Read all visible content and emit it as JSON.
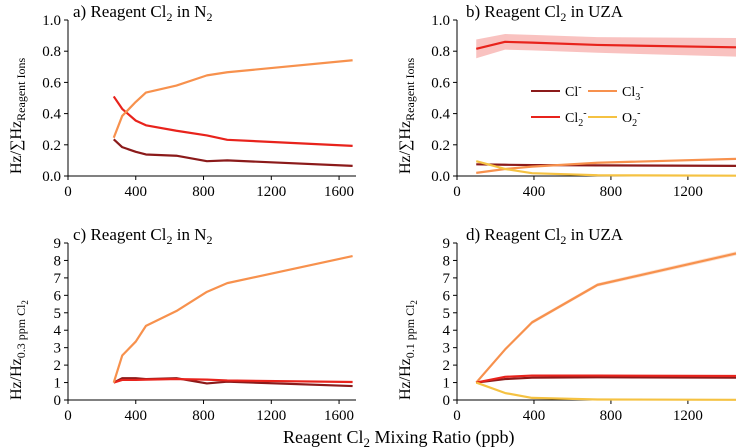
{
  "chart_data": [
    {
      "panel": "a",
      "type": "line",
      "title": "a) Reagent Cl2 in N2",
      "title_parts": {
        "prefix": "a) Reagent Cl",
        "sub1": "2",
        "mid": " in N",
        "sub2": "2"
      },
      "ylabel": {
        "main": "Hz/∑Hz",
        "sub": "Reagent Ions"
      },
      "xlim": [
        0,
        1700
      ],
      "ylim": [
        0,
        1.0
      ],
      "xticks": [
        0,
        400,
        800,
        1200,
        1600
      ],
      "yticks": [
        0.0,
        0.2,
        0.4,
        0.6,
        0.8,
        1.0
      ],
      "ytick_labels": [
        "0.0",
        "0.2",
        "0.4",
        "0.6",
        "0.8",
        "1.0"
      ],
      "series": [
        {
          "name": "Cl-",
          "color": "#8b1a1a",
          "x": [
            270,
            320,
            400,
            460,
            640,
            820,
            940,
            1680
          ],
          "y": [
            0.235,
            0.185,
            0.155,
            0.138,
            0.13,
            0.095,
            0.1,
            0.065
          ]
        },
        {
          "name": "Cl2-",
          "color": "#e8231c",
          "x": [
            270,
            320,
            400,
            460,
            640,
            820,
            940,
            1680
          ],
          "y": [
            0.51,
            0.43,
            0.355,
            0.325,
            0.29,
            0.26,
            0.232,
            0.193
          ]
        },
        {
          "name": "Cl3-",
          "color": "#f7914d",
          "x": [
            270,
            320,
            400,
            460,
            640,
            820,
            940,
            1680
          ],
          "y": [
            0.245,
            0.385,
            0.475,
            0.535,
            0.58,
            0.645,
            0.665,
            0.742
          ]
        }
      ]
    },
    {
      "panel": "b",
      "type": "line",
      "title": "b) Reagent Cl2 in UZA",
      "title_parts": {
        "prefix": "b) Reagent Cl",
        "sub1": "2",
        "mid": " in UZA",
        "sub2": ""
      },
      "ylabel": {
        "main": "Hz/∑Hz",
        "sub": "Reagent Ions"
      },
      "xlim": [
        0,
        1450
      ],
      "ylim": [
        0,
        1.0
      ],
      "xticks": [
        0,
        400,
        800,
        1200
      ],
      "yticks": [
        0.0,
        0.2,
        0.4,
        0.6,
        0.8,
        1.0
      ],
      "ytick_labels": [
        "0.0",
        "0.2",
        "0.4",
        "0.6",
        "0.8",
        "1.0"
      ],
      "legend": [
        {
          "label": "Cl",
          "sup": "-",
          "color": "#8b1a1a"
        },
        {
          "label": "Cl",
          "sub": "3",
          "sup": "-",
          "color": "#f7914d"
        },
        {
          "label": "Cl",
          "sub": "2",
          "sup": "-",
          "color": "#e8231c"
        },
        {
          "label": "O",
          "sub": "2",
          "sup": "-",
          "color": "#f5c242"
        }
      ],
      "series": [
        {
          "name": "Cl2-",
          "color": "#e8231c",
          "x": [
            100,
            250,
            390,
            730,
            1450
          ],
          "y": [
            0.815,
            0.86,
            0.855,
            0.84,
            0.825
          ],
          "band": [
            0.06,
            0.05,
            0.05,
            0.05,
            0.06
          ]
        },
        {
          "name": "Cl-",
          "color": "#8b1a1a",
          "x": [
            100,
            250,
            390,
            730,
            1450
          ],
          "y": [
            0.075,
            0.072,
            0.07,
            0.068,
            0.065
          ]
        },
        {
          "name": "Cl3-",
          "color": "#f7914d",
          "x": [
            100,
            250,
            390,
            730,
            1450
          ],
          "y": [
            0.02,
            0.045,
            0.06,
            0.085,
            0.11
          ]
        },
        {
          "name": "O2-",
          "color": "#f5c242",
          "x": [
            100,
            250,
            390,
            730,
            1450
          ],
          "y": [
            0.095,
            0.045,
            0.018,
            0.005,
            0.002
          ]
        }
      ]
    },
    {
      "panel": "c",
      "type": "line",
      "title": "c) Reagent Cl2 in N2",
      "title_parts": {
        "prefix": "c) Reagent Cl",
        "sub1": "2",
        "mid": " in N",
        "sub2": "2"
      },
      "ylabel": {
        "main": "Hz/Hz",
        "sub": "0.3 ppm Cl",
        "subsub": "2"
      },
      "xlim": [
        0,
        1700
      ],
      "ylim": [
        0,
        9
      ],
      "xticks": [
        0,
        400,
        800,
        1200,
        1600
      ],
      "yticks": [
        0,
        1,
        2,
        3,
        4,
        5,
        6,
        7,
        8,
        9
      ],
      "ytick_labels": [
        "0",
        "1",
        "2",
        "3",
        "4",
        "5",
        "6",
        "7",
        "8",
        "9"
      ],
      "series": [
        {
          "name": "Cl-",
          "color": "#8b1a1a",
          "x": [
            270,
            320,
            400,
            460,
            640,
            820,
            940,
            1680
          ],
          "y": [
            1.0,
            1.25,
            1.25,
            1.2,
            1.25,
            0.95,
            1.05,
            0.8
          ]
        },
        {
          "name": "Cl2-",
          "color": "#e8231c",
          "x": [
            270,
            320,
            400,
            460,
            640,
            820,
            940,
            1680
          ],
          "y": [
            1.0,
            1.15,
            1.15,
            1.17,
            1.2,
            1.17,
            1.12,
            1.03
          ]
        },
        {
          "name": "Cl3-",
          "color": "#f7914d",
          "x": [
            270,
            320,
            400,
            460,
            640,
            820,
            940,
            1680
          ],
          "y": [
            1.0,
            2.55,
            3.35,
            4.25,
            5.1,
            6.2,
            6.7,
            8.25
          ]
        }
      ]
    },
    {
      "panel": "d",
      "type": "line",
      "title": "d) Reagent Cl2 in UZA",
      "title_parts": {
        "prefix": "d) Reagent Cl",
        "sub1": "2",
        "mid": " in UZA",
        "sub2": ""
      },
      "ylabel": {
        "main": "Hz/Hz",
        "sub": "0.1 ppm Cl",
        "subsub": "2"
      },
      "xlim": [
        0,
        1450
      ],
      "ylim": [
        0,
        9
      ],
      "xticks": [
        0,
        400,
        800,
        1200
      ],
      "yticks": [
        0,
        1,
        2,
        3,
        4,
        5,
        6,
        7,
        8,
        9
      ],
      "ytick_labels": [
        "0",
        "1",
        "2",
        "3",
        "4",
        "5",
        "6",
        "7",
        "8",
        "9"
      ],
      "series": [
        {
          "name": "Cl3-",
          "color": "#f7914d",
          "x": [
            100,
            250,
            390,
            730,
            1450
          ],
          "y": [
            1.0,
            2.9,
            4.45,
            6.6,
            8.4
          ],
          "band": [
            0.05,
            0.08,
            0.1,
            0.1,
            0.12
          ]
        },
        {
          "name": "Cl-",
          "color": "#8b1a1a",
          "x": [
            100,
            250,
            390,
            730,
            1450
          ],
          "y": [
            1.0,
            1.2,
            1.28,
            1.3,
            1.28
          ]
        },
        {
          "name": "Cl2-",
          "color": "#e8231c",
          "x": [
            100,
            250,
            390,
            730,
            1450
          ],
          "y": [
            1.0,
            1.33,
            1.4,
            1.4,
            1.38
          ]
        },
        {
          "name": "O2-",
          "color": "#f5c242",
          "x": [
            100,
            250,
            390,
            730,
            1450
          ],
          "y": [
            1.0,
            0.4,
            0.12,
            0.03,
            0.01
          ]
        }
      ]
    }
  ],
  "shared_xlabel": {
    "prefix": "Reagent Cl",
    "sub": "2",
    "suffix": " Mixing Ratio (ppb)"
  }
}
